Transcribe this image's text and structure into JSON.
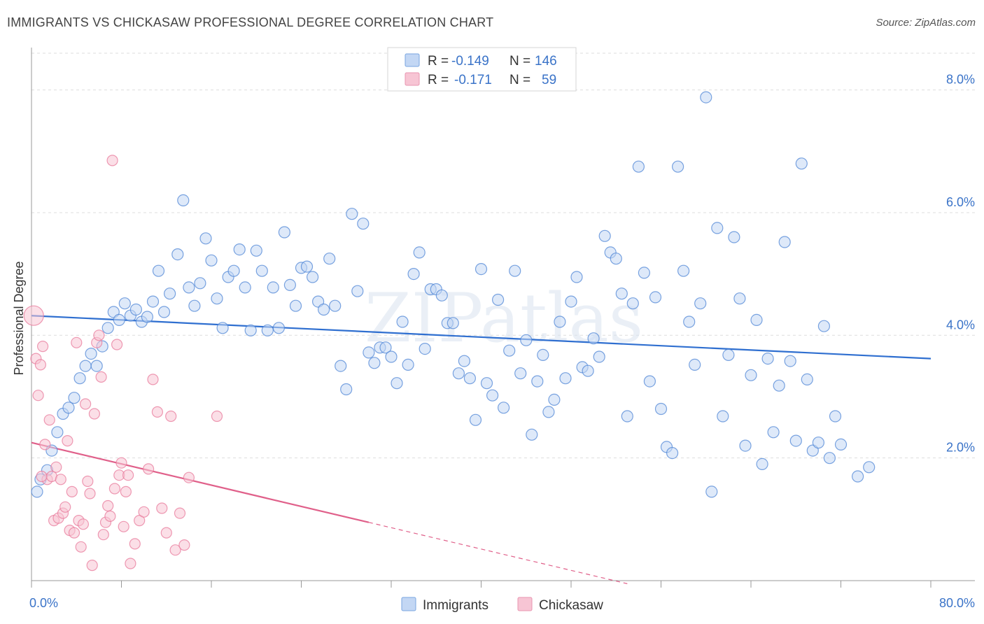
{
  "header": {
    "title": "IMMIGRANTS VS CHICKASAW PROFESSIONAL DEGREE CORRELATION CHART",
    "source": "Source: ZipAtlas.com"
  },
  "watermark": "ZIPatlas",
  "colors": {
    "immigrants": "#4f86d6",
    "immigrants_fill": "#c3d7f4",
    "chickasaw": "#e8799b",
    "chickasaw_fill": "#f7c5d4",
    "value_text": "#3a73c8",
    "grid": "#dddddd"
  },
  "stats": {
    "rows": [
      {
        "r_label": "R =",
        "r_value": "-0.149",
        "n_label": "N =",
        "n_value": "146"
      },
      {
        "r_label": "R =",
        "r_value": "-0.171",
        "n_label": "N =",
        "n_value": "59"
      }
    ]
  },
  "chart_data": {
    "type": "scatter",
    "ylabel": "Professional Degree",
    "xlim": [
      0,
      80
    ],
    "ylim": [
      0,
      8.6
    ],
    "x_tick_labels": [
      "0.0%",
      "80.0%"
    ],
    "y_ticks": [
      2,
      4,
      6,
      8
    ],
    "y_tick_labels": [
      "2.0%",
      "4.0%",
      "6.0%",
      "8.0%"
    ],
    "grid": "horizontal dashed",
    "legend": {
      "position": "bottom-center",
      "entries": [
        "Immigrants",
        "Chickasaw"
      ]
    },
    "series": [
      {
        "name": "Immigrants",
        "trend": {
          "x0": 0,
          "y0": 4.32,
          "x1": 80,
          "y1": 3.62
        },
        "points": [
          [
            0.5,
            1.45
          ],
          [
            0.8,
            1.65
          ],
          [
            1.4,
            1.8
          ],
          [
            1.8,
            2.12
          ],
          [
            2.3,
            2.42
          ],
          [
            2.8,
            2.72
          ],
          [
            3.3,
            2.82
          ],
          [
            3.8,
            2.98
          ],
          [
            4.3,
            3.3
          ],
          [
            4.8,
            3.5
          ],
          [
            5.3,
            3.7
          ],
          [
            5.8,
            3.5
          ],
          [
            6.3,
            3.82
          ],
          [
            6.8,
            4.12
          ],
          [
            7.3,
            4.38
          ],
          [
            7.8,
            4.25
          ],
          [
            8.3,
            4.52
          ],
          [
            8.8,
            4.32
          ],
          [
            9.3,
            4.42
          ],
          [
            9.8,
            4.22
          ],
          [
            10.3,
            4.3
          ],
          [
            10.8,
            4.55
          ],
          [
            11.3,
            5.05
          ],
          [
            11.8,
            4.38
          ],
          [
            12.3,
            4.68
          ],
          [
            13.0,
            5.32
          ],
          [
            13.5,
            6.2
          ],
          [
            14.0,
            4.78
          ],
          [
            14.5,
            4.48
          ],
          [
            15.0,
            4.85
          ],
          [
            15.5,
            5.58
          ],
          [
            16.0,
            5.22
          ],
          [
            16.5,
            4.6
          ],
          [
            17.0,
            4.12
          ],
          [
            17.5,
            4.95
          ],
          [
            18.0,
            5.05
          ],
          [
            18.5,
            5.4
          ],
          [
            19.0,
            4.78
          ],
          [
            19.5,
            4.08
          ],
          [
            20.0,
            5.38
          ],
          [
            20.5,
            5.05
          ],
          [
            21.0,
            4.08
          ],
          [
            21.5,
            4.78
          ],
          [
            22.0,
            4.12
          ],
          [
            22.5,
            5.68
          ],
          [
            23.0,
            4.82
          ],
          [
            23.5,
            4.48
          ],
          [
            24.0,
            5.1
          ],
          [
            24.5,
            5.12
          ],
          [
            25.0,
            4.95
          ],
          [
            25.5,
            4.55
          ],
          [
            26.0,
            4.42
          ],
          [
            26.5,
            5.25
          ],
          [
            27.0,
            4.48
          ],
          [
            27.5,
            3.5
          ],
          [
            28.0,
            3.12
          ],
          [
            28.5,
            5.98
          ],
          [
            29.0,
            4.72
          ],
          [
            29.5,
            5.82
          ],
          [
            30.0,
            3.72
          ],
          [
            30.5,
            3.55
          ],
          [
            31.0,
            3.8
          ],
          [
            31.5,
            3.8
          ],
          [
            32.0,
            3.65
          ],
          [
            32.5,
            3.22
          ],
          [
            33.0,
            4.22
          ],
          [
            33.5,
            3.52
          ],
          [
            34.0,
            5.0
          ],
          [
            34.5,
            5.35
          ],
          [
            35.0,
            3.78
          ],
          [
            35.5,
            4.75
          ],
          [
            36.0,
            4.75
          ],
          [
            36.5,
            4.65
          ],
          [
            37.0,
            4.2
          ],
          [
            37.5,
            4.2
          ],
          [
            38.0,
            3.38
          ],
          [
            38.5,
            3.58
          ],
          [
            39.0,
            3.3
          ],
          [
            39.5,
            2.62
          ],
          [
            40.0,
            5.08
          ],
          [
            40.5,
            3.22
          ],
          [
            41.0,
            3.02
          ],
          [
            41.5,
            4.58
          ],
          [
            42.0,
            2.82
          ],
          [
            42.5,
            3.75
          ],
          [
            43.0,
            5.05
          ],
          [
            43.5,
            3.38
          ],
          [
            44.0,
            3.92
          ],
          [
            44.5,
            2.38
          ],
          [
            45.0,
            3.25
          ],
          [
            45.5,
            3.68
          ],
          [
            46.0,
            2.75
          ],
          [
            46.5,
            2.95
          ],
          [
            47.0,
            4.22
          ],
          [
            47.5,
            3.3
          ],
          [
            48.0,
            4.55
          ],
          [
            48.5,
            4.95
          ],
          [
            49.0,
            3.48
          ],
          [
            49.5,
            3.42
          ],
          [
            50.0,
            3.95
          ],
          [
            50.5,
            3.65
          ],
          [
            51.0,
            5.62
          ],
          [
            51.5,
            5.35
          ],
          [
            52.0,
            5.25
          ],
          [
            52.5,
            4.68
          ],
          [
            53.0,
            2.68
          ],
          [
            53.5,
            4.52
          ],
          [
            54.0,
            6.75
          ],
          [
            54.5,
            5.02
          ],
          [
            55.0,
            3.25
          ],
          [
            55.5,
            4.62
          ],
          [
            56.0,
            2.8
          ],
          [
            56.5,
            2.18
          ],
          [
            57.0,
            2.08
          ],
          [
            57.5,
            6.75
          ],
          [
            58.0,
            5.05
          ],
          [
            58.5,
            4.22
          ],
          [
            59.0,
            3.52
          ],
          [
            59.5,
            4.52
          ],
          [
            60.0,
            7.88
          ],
          [
            60.5,
            1.45
          ],
          [
            61.0,
            5.75
          ],
          [
            61.5,
            2.68
          ],
          [
            62.0,
            3.68
          ],
          [
            62.5,
            5.6
          ],
          [
            63.0,
            4.6
          ],
          [
            63.5,
            2.2
          ],
          [
            64.0,
            3.35
          ],
          [
            64.5,
            4.25
          ],
          [
            65.0,
            1.9
          ],
          [
            65.5,
            3.62
          ],
          [
            66.0,
            2.42
          ],
          [
            66.5,
            3.18
          ],
          [
            67.0,
            5.52
          ],
          [
            67.5,
            3.58
          ],
          [
            68.0,
            2.28
          ],
          [
            68.5,
            6.8
          ],
          [
            69.0,
            3.28
          ],
          [
            69.5,
            2.12
          ],
          [
            70.0,
            2.25
          ],
          [
            70.5,
            4.15
          ],
          [
            71.0,
            2.0
          ],
          [
            71.5,
            2.68
          ],
          [
            72.0,
            2.22
          ],
          [
            73.5,
            1.7
          ],
          [
            74.5,
            1.85
          ]
        ]
      },
      {
        "name": "Chickasaw",
        "trend": {
          "x0": 0,
          "y0": 2.25,
          "x1": 30,
          "y1": 0.95
        },
        "trend_extension": {
          "x0": 30,
          "y0": 0.95,
          "x1": 53,
          "y1": -0.05
        },
        "points": [
          [
            0.2,
            4.32
          ],
          [
            0.4,
            3.62
          ],
          [
            0.6,
            3.02
          ],
          [
            0.8,
            3.52
          ],
          [
            1.0,
            3.82
          ],
          [
            1.2,
            2.22
          ],
          [
            1.4,
            1.65
          ],
          [
            1.6,
            2.62
          ],
          [
            1.8,
            1.7
          ],
          [
            2.0,
            0.98
          ],
          [
            2.2,
            1.85
          ],
          [
            2.4,
            1.02
          ],
          [
            2.6,
            1.65
          ],
          [
            2.8,
            1.1
          ],
          [
            3.0,
            1.2
          ],
          [
            3.2,
            2.28
          ],
          [
            3.4,
            0.82
          ],
          [
            3.6,
            1.45
          ],
          [
            3.8,
            0.78
          ],
          [
            4.0,
            3.88
          ],
          [
            4.2,
            0.98
          ],
          [
            4.4,
            0.55
          ],
          [
            4.6,
            0.92
          ],
          [
            4.8,
            2.88
          ],
          [
            5.0,
            1.62
          ],
          [
            5.2,
            1.42
          ],
          [
            5.4,
            0.25
          ],
          [
            5.6,
            2.72
          ],
          [
            5.8,
            3.88
          ],
          [
            6.0,
            4.0
          ],
          [
            6.2,
            3.32
          ],
          [
            6.4,
            0.75
          ],
          [
            6.6,
            0.95
          ],
          [
            6.8,
            1.22
          ],
          [
            7.0,
            1.05
          ],
          [
            7.2,
            6.85
          ],
          [
            7.4,
            1.5
          ],
          [
            7.6,
            3.85
          ],
          [
            7.8,
            1.72
          ],
          [
            8.0,
            1.92
          ],
          [
            8.2,
            0.88
          ],
          [
            8.4,
            1.45
          ],
          [
            8.6,
            1.72
          ],
          [
            8.8,
            0.28
          ],
          [
            9.2,
            0.6
          ],
          [
            9.6,
            0.98
          ],
          [
            10.0,
            1.12
          ],
          [
            10.4,
            1.82
          ],
          [
            10.8,
            3.28
          ],
          [
            11.2,
            2.75
          ],
          [
            11.6,
            1.18
          ],
          [
            12.0,
            0.78
          ],
          [
            12.4,
            2.68
          ],
          [
            12.8,
            0.5
          ],
          [
            13.2,
            1.1
          ],
          [
            13.6,
            0.58
          ],
          [
            14.0,
            1.68
          ],
          [
            16.5,
            2.68
          ],
          [
            0.9,
            1.7
          ]
        ]
      }
    ]
  }
}
